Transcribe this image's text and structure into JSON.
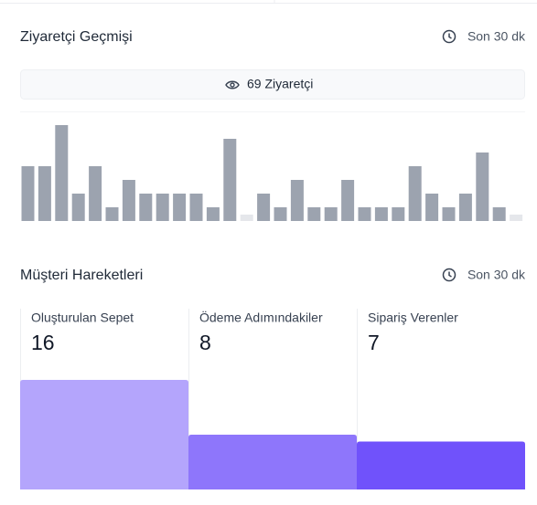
{
  "chart_data": [
    {
      "type": "bar",
      "title": "Ziyaretçi Geçmişi",
      "subtitle": "Son 30 dk",
      "annotation": "69 Ziyaretçi",
      "values": [
        4,
        4,
        7,
        2,
        4,
        1,
        3,
        2,
        2,
        2,
        2,
        1,
        6,
        0,
        2,
        1,
        3,
        1,
        1,
        3,
        1,
        1,
        1,
        4,
        2,
        1,
        2,
        5,
        1,
        0
      ],
      "color": "#9ca3af",
      "empty_color": "#e5e7eb"
    },
    {
      "type": "funnel",
      "title": "Müşteri Hareketleri",
      "subtitle": "Son 30 dk",
      "categories": [
        "Oluşturulan Sepet",
        "Ödeme Adımındakiler",
        "Sipariş Verenler"
      ],
      "values": [
        16,
        8,
        7
      ],
      "colors": [
        "#b4a5fc",
        "#8e76fb",
        "#7052fb"
      ]
    }
  ]
}
